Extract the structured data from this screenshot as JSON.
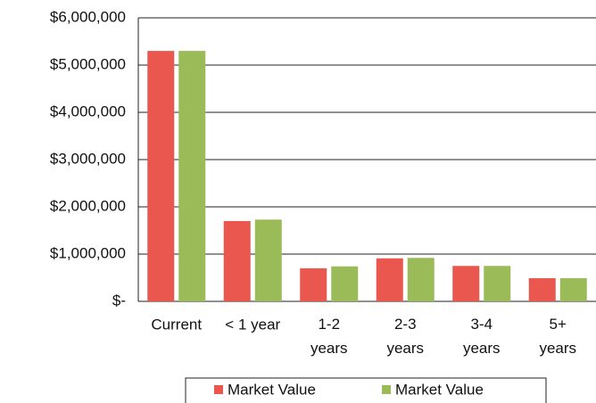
{
  "chart_data": {
    "type": "bar",
    "categories": [
      "Current",
      "< 1 year",
      "1-2\nyears",
      "2-3\nyears",
      "3-4\nyears",
      "5+\nyears"
    ],
    "series": [
      {
        "name": "Market Value",
        "color": "#e9574e",
        "values": [
          5300000,
          1700000,
          700000,
          910000,
          750000,
          490000
        ]
      },
      {
        "name": "Market Value",
        "color": "#9bbb59",
        "values": [
          5300000,
          1730000,
          740000,
          920000,
          750000,
          490000
        ]
      }
    ],
    "ylim": [
      0,
      6000000
    ],
    "yticks": [
      {
        "value": 0,
        "label": "$-"
      },
      {
        "value": 1000000,
        "label": "$1,000,000"
      },
      {
        "value": 2000000,
        "label": "$2,000,000"
      },
      {
        "value": 3000000,
        "label": "$3,000,000"
      },
      {
        "value": 4000000,
        "label": "$4,000,000"
      },
      {
        "value": 5000000,
        "label": "$5,000,000"
      },
      {
        "value": 6000000,
        "label": "$6,000,000"
      }
    ],
    "grid": true,
    "legend": "bottom"
  }
}
